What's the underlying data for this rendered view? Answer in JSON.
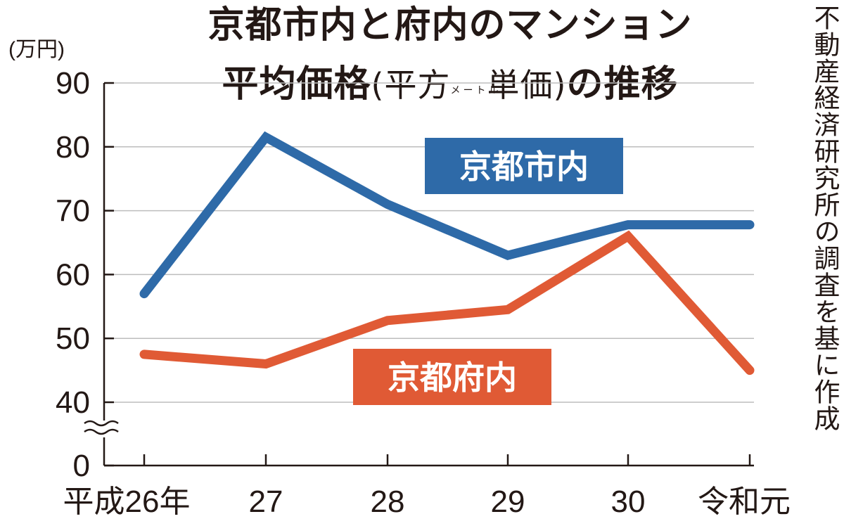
{
  "title": {
    "line1": "京都市内と府内のマンション",
    "line2_main": "平均価格",
    "line2_paren_open": "(",
    "line2_paren_a": "平方",
    "line2_ruby": "メートル",
    "line2_paren_b": "単価",
    "line2_paren_close": ")",
    "line2_tail": "の推移"
  },
  "source": "不動産経済研究所の調査を基に作成",
  "chart_data": {
    "type": "line",
    "title": "京都市内と府内のマンション平均価格(平方メートル単価)の推移",
    "ylabel": "(万円)",
    "xlabel": "",
    "categories": [
      "平成26年",
      "27",
      "28",
      "29",
      "30",
      "令和元"
    ],
    "y_ticks": [
      "90",
      "80",
      "70",
      "60",
      "50",
      "40",
      "0"
    ],
    "ylim": [
      40,
      90
    ],
    "axis_break": true,
    "grid": true,
    "series": [
      {
        "name": "京都市内",
        "color": "#2e6aa8",
        "values": [
          57,
          81.5,
          71,
          63,
          67.8,
          67.8
        ]
      },
      {
        "name": "京都府内",
        "color": "#e05a35",
        "values": [
          47.5,
          46,
          52.8,
          54.5,
          66,
          45
        ]
      }
    ],
    "labels": [
      "京都市内",
      "京都府内"
    ]
  }
}
